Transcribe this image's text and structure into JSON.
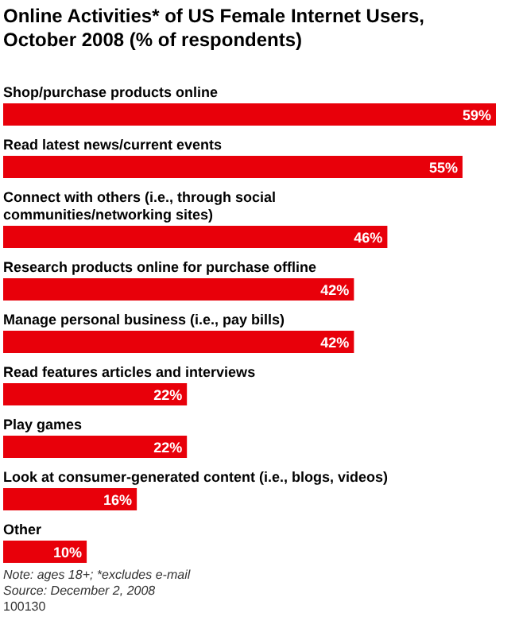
{
  "chart_data": {
    "type": "bar",
    "orientation": "horizontal",
    "title": "Online Activities* of US Female Internet Users, October 2008 (% of respondents)",
    "categories": [
      "Shop/purchase products online",
      "Read latest news/current events",
      "Connect with others (i.e., through social communities/networking sites)",
      "Research products online for purchase offline",
      "Manage personal business (i.e., pay bills)",
      "Read features articles and interviews",
      "Play games",
      "Look at consumer-generated content (i.e., blogs, videos)",
      "Other"
    ],
    "values": [
      59,
      55,
      46,
      42,
      42,
      22,
      22,
      16,
      10
    ],
    "value_labels": [
      "59%",
      "55%",
      "46%",
      "42%",
      "42%",
      "22%",
      "22%",
      "16%",
      "10%"
    ],
    "color": "#e8000a",
    "annotations": [
      "Note: ages 18+; *excludes e-mail",
      "Source: December 2, 2008",
      "100130"
    ]
  }
}
